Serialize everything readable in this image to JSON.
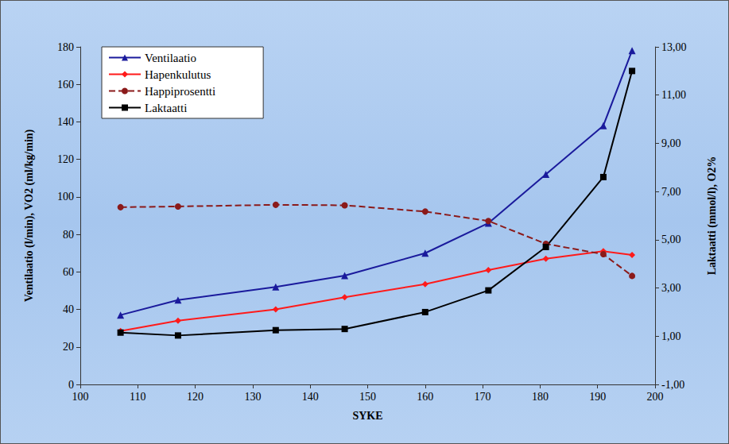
{
  "chart_data": {
    "type": "line",
    "xlabel": "SYKE",
    "ylabel": "Ventilaatio (l/min), VO2 (ml/kg/min)",
    "y2label": "Laktaatti (mmol/l), O2%",
    "x": [
      107,
      117,
      134,
      146,
      160,
      171,
      181,
      191,
      196
    ],
    "series": [
      {
        "name": "Ventilaatio",
        "color": "#1a1a9c",
        "marker": "triangle",
        "line_style": "solid",
        "values": [
          37,
          45,
          52,
          58,
          70,
          86,
          112,
          138,
          178
        ]
      },
      {
        "name": "Hapenkulutus",
        "color": "#ff1a1a",
        "marker": "diamond",
        "line_style": "solid",
        "values": [
          28.5,
          34,
          40,
          46.5,
          53.5,
          61,
          67,
          71,
          69
        ]
      },
      {
        "name": "Happiprosentti",
        "color": "#8b1a1a",
        "marker": "circle",
        "line_style": "dashed",
        "axis": "y2",
        "values": [
          6.35,
          6.38,
          6.45,
          6.43,
          6.17,
          5.78,
          4.83,
          4.4,
          3.5
        ]
      },
      {
        "name": "Laktaatti",
        "color": "#000000",
        "marker": "square",
        "line_style": "solid",
        "axis": "y2",
        "values": [
          1.15,
          1.03,
          1.25,
          1.3,
          2.0,
          2.9,
          4.7,
          7.6,
          12.0
        ]
      }
    ],
    "xlim": [
      100,
      200
    ],
    "xticks": [
      100,
      110,
      120,
      130,
      140,
      150,
      160,
      170,
      180,
      190,
      200
    ],
    "ylim": [
      0,
      180
    ],
    "yticks": [
      0,
      20,
      40,
      60,
      80,
      100,
      120,
      140,
      160,
      180
    ],
    "y2lim": [
      -1,
      13
    ],
    "y2ticks": [
      {
        "value": -1,
        "label": "-1,00"
      },
      {
        "value": 1,
        "label": "1,00"
      },
      {
        "value": 3,
        "label": "3,00"
      },
      {
        "value": 5,
        "label": "5,00"
      },
      {
        "value": 7,
        "label": "7,00"
      },
      {
        "value": 9,
        "label": "9,00"
      },
      {
        "value": 11,
        "label": "11,00"
      },
      {
        "value": 13,
        "label": "13,00"
      }
    ],
    "grid": false,
    "legend": "upper left"
  }
}
